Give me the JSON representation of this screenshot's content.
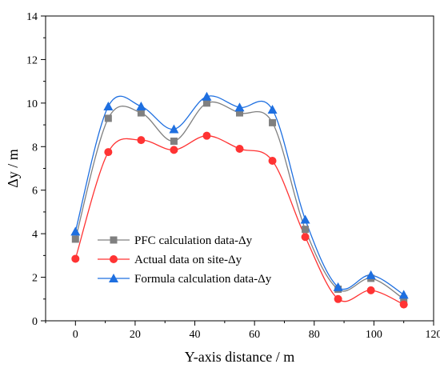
{
  "chart_data": {
    "type": "line",
    "title": "",
    "xlabel": "Y-axis distance / m",
    "ylabel": "Δy / m",
    "xlim": [
      -10,
      120
    ],
    "ylim": [
      0,
      14
    ],
    "x_ticks": [
      0,
      20,
      40,
      60,
      80,
      100,
      120
    ],
    "y_ticks": [
      0,
      2,
      4,
      6,
      8,
      10,
      12,
      14
    ],
    "grid": false,
    "legend_position": "bottom-left",
    "x": [
      0,
      11,
      22,
      33,
      44,
      55,
      66,
      77,
      88,
      99,
      110
    ],
    "series": [
      {
        "name": "PFC calculation data-Δy",
        "marker": "square",
        "color": "#808080",
        "values": [
          3.75,
          9.3,
          9.55,
          8.25,
          10.0,
          9.55,
          9.1,
          4.2,
          1.45,
          1.95,
          1.0
        ]
      },
      {
        "name": "Actual data on site-Δy",
        "marker": "circle",
        "color": "#ff3333",
        "values": [
          2.85,
          7.75,
          8.3,
          7.85,
          8.5,
          7.9,
          7.35,
          3.85,
          1.0,
          1.4,
          0.75
        ]
      },
      {
        "name": "Formula calculation data-Δy",
        "marker": "triangle",
        "color": "#1e6fe0",
        "values": [
          4.1,
          9.85,
          9.85,
          8.8,
          10.3,
          9.8,
          9.7,
          4.65,
          1.55,
          2.1,
          1.2
        ]
      }
    ]
  }
}
